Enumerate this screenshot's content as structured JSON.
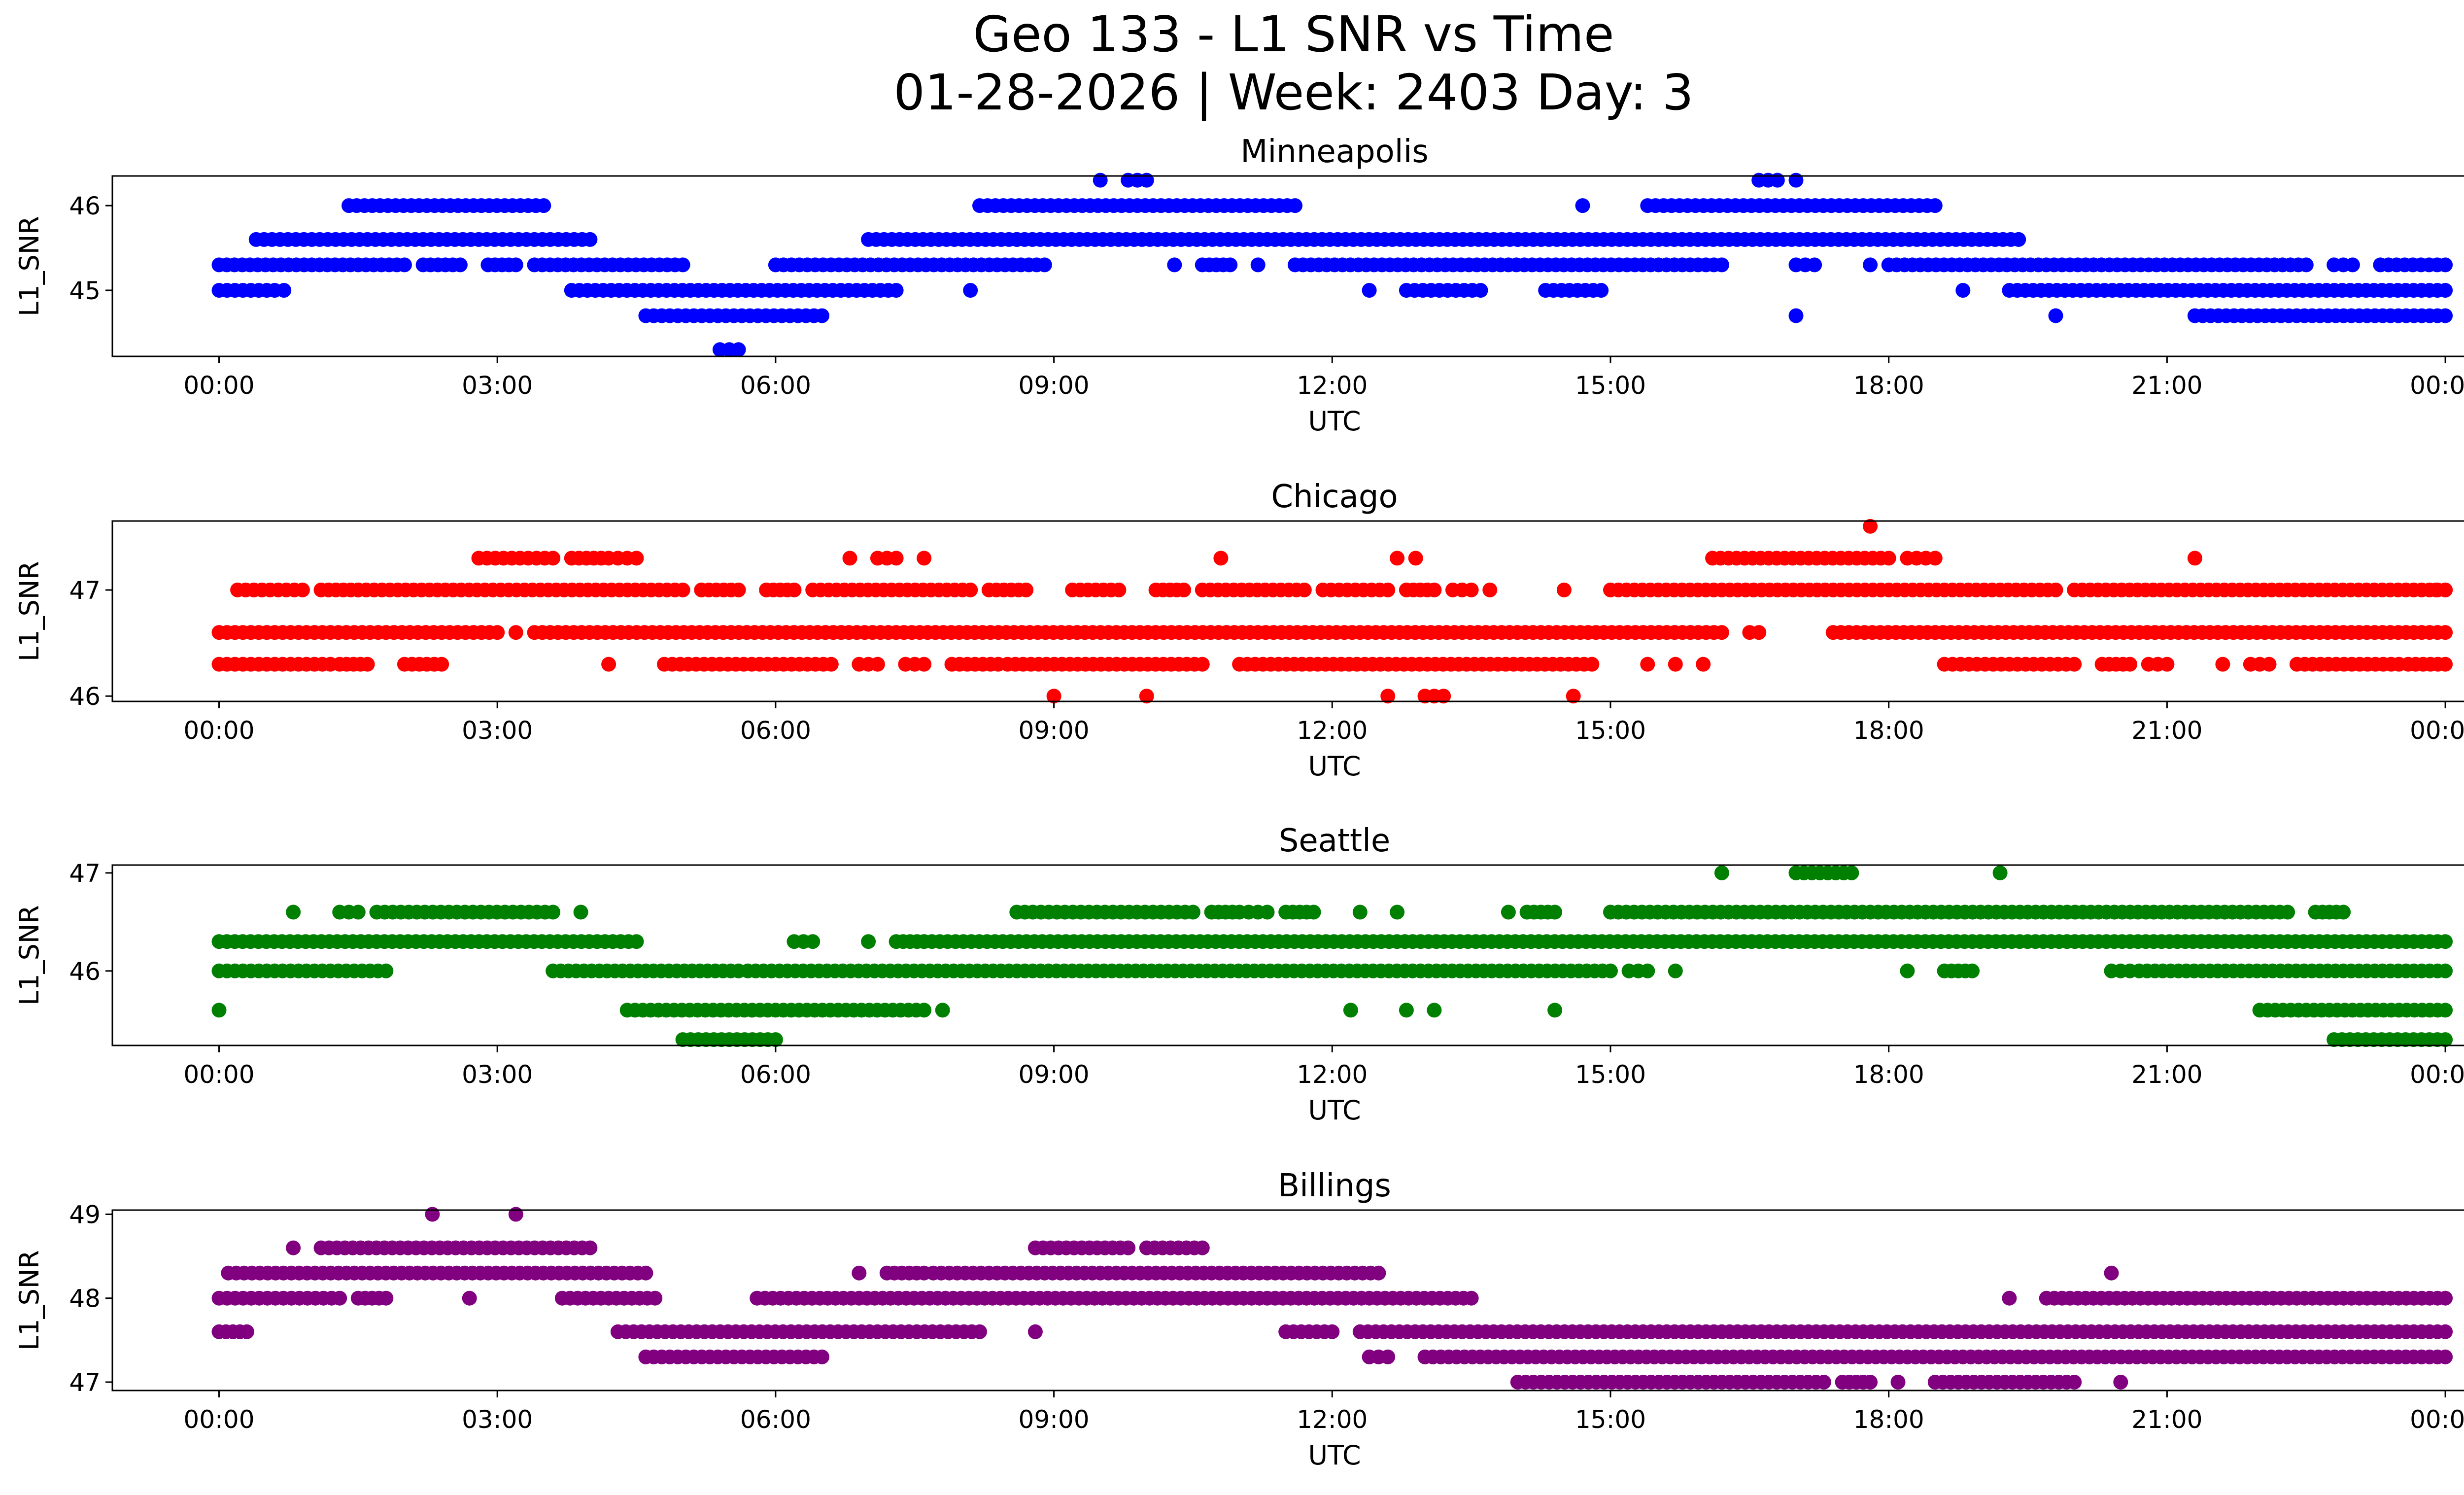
{
  "chart_data": {
    "type": "scatter",
    "title": "Geo 133 - L1 SNR vs Time",
    "subtitle": "01-28-2026 | Week: 2403 Day: 3",
    "x_tick_labels": [
      "00:00",
      "03:00",
      "06:00",
      "09:00",
      "12:00",
      "15:00",
      "18:00",
      "21:00",
      "00:00"
    ],
    "xlim_hours": [
      -1.15,
      25.2
    ],
    "panels": [
      {
        "name": "Minneapolis",
        "color": "#0000ff",
        "xlabel": "UTC",
        "ylabel": "L1_SNR",
        "ylim": [
          44.22,
          46.35
        ],
        "yticks": [
          45,
          46
        ],
        "levels": [
          {
            "y": 46.3,
            "ranges": [
              [
                9.5,
                9.5
              ],
              [
                9.8,
                10.0
              ],
              [
                16.6,
                16.8
              ],
              [
                17.0,
                17.0
              ]
            ]
          },
          {
            "y": 46.0,
            "ranges": [
              [
                1.4,
                3.5
              ],
              [
                8.2,
                11.6
              ],
              [
                14.7,
                14.7
              ],
              [
                15.4,
                18.5
              ]
            ]
          },
          {
            "y": 45.6,
            "ranges": [
              [
                0.4,
                4.0
              ],
              [
                7.0,
                8.6
              ],
              [
                8.6,
                14.0
              ],
              [
                14.0,
                19.4
              ]
            ]
          },
          {
            "y": 45.3,
            "ranges": [
              [
                0.0,
                2.0
              ],
              [
                2.2,
                2.6
              ],
              [
                2.9,
                3.2
              ],
              [
                3.4,
                5.0
              ],
              [
                6.0,
                8.9
              ],
              [
                10.3,
                10.3
              ],
              [
                10.6,
                10.9
              ],
              [
                11.2,
                11.2
              ],
              [
                11.6,
                16.2
              ],
              [
                17.0,
                17.2
              ],
              [
                17.8,
                17.8
              ],
              [
                18.0,
                22.5
              ],
              [
                22.8,
                23.0
              ],
              [
                23.3,
                24.0
              ]
            ]
          },
          {
            "y": 45.0,
            "ranges": [
              [
                0.0,
                0.6
              ],
              [
                0.7,
                0.7
              ],
              [
                3.8,
                7.3
              ],
              [
                8.1,
                8.1
              ],
              [
                12.4,
                12.4
              ],
              [
                12.8,
                13.6
              ],
              [
                14.3,
                14.9
              ],
              [
                18.8,
                18.8
              ],
              [
                19.3,
                24.0
              ]
            ]
          },
          {
            "y": 44.7,
            "ranges": [
              [
                4.6,
                6.5
              ],
              [
                17.0,
                17.0
              ],
              [
                19.8,
                19.8
              ],
              [
                21.3,
                24.0
              ]
            ]
          },
          {
            "y": 44.3,
            "ranges": [
              [
                5.4,
                5.6
              ]
            ]
          }
        ]
      },
      {
        "name": "Chicago",
        "color": "#ff0000",
        "xlabel": "UTC",
        "ylabel": "L1_SNR",
        "ylim": [
          45.95,
          47.65
        ],
        "yticks": [
          46,
          47
        ],
        "levels": [
          {
            "y": 47.6,
            "ranges": [
              [
                17.8,
                17.8
              ]
            ]
          },
          {
            "y": 47.3,
            "ranges": [
              [
                2.8,
                3.6
              ],
              [
                3.8,
                4.2
              ],
              [
                4.3,
                4.5
              ],
              [
                6.8,
                6.8
              ],
              [
                7.1,
                7.3
              ],
              [
                7.6,
                7.6
              ],
              [
                10.8,
                10.8
              ],
              [
                12.7,
                12.7
              ],
              [
                12.9,
                12.9
              ],
              [
                16.1,
                18.0
              ],
              [
                18.2,
                18.2
              ],
              [
                18.3,
                18.5
              ],
              [
                21.3,
                21.3
              ]
            ]
          },
          {
            "y": 47.0,
            "ranges": [
              [
                0.2,
                0.9
              ],
              [
                1.1,
                1.5
              ],
              [
                1.5,
                5.0
              ],
              [
                5.2,
                5.6
              ],
              [
                5.9,
                6.2
              ],
              [
                6.4,
                8.1
              ],
              [
                8.3,
                8.7
              ],
              [
                9.2,
                9.7
              ],
              [
                10.1,
                10.4
              ],
              [
                10.6,
                11.7
              ],
              [
                11.9,
                12.6
              ],
              [
                12.8,
                13.1
              ],
              [
                13.3,
                13.5
              ],
              [
                13.7,
                13.7
              ],
              [
                14.5,
                14.5
              ],
              [
                15.0,
                19.8
              ],
              [
                20.0,
                24.0
              ],
              [
                24.0,
                23.9
              ]
            ]
          },
          {
            "y": 46.6,
            "ranges": [
              [
                0.0,
                3.0
              ],
              [
                3.2,
                3.2
              ],
              [
                3.4,
                16.2
              ],
              [
                16.5,
                16.6
              ],
              [
                17.4,
                24.0
              ]
            ]
          },
          {
            "y": 46.3,
            "ranges": [
              [
                0.0,
                1.2
              ],
              [
                1.3,
                1.6
              ],
              [
                2.0,
                2.4
              ],
              [
                4.2,
                4.2
              ],
              [
                4.8,
                6.6
              ],
              [
                6.9,
                7.1
              ],
              [
                7.4,
                7.6
              ],
              [
                7.9,
                8.4
              ],
              [
                8.5,
                10.6
              ],
              [
                11.0,
                14.8
              ],
              [
                15.4,
                15.4
              ],
              [
                15.7,
                15.7
              ],
              [
                16.0,
                16.0
              ],
              [
                18.6,
                20.0
              ],
              [
                20.3,
                20.6
              ],
              [
                20.8,
                21.0
              ],
              [
                21.6,
                21.6
              ],
              [
                21.9,
                22.1
              ],
              [
                22.4,
                23.5
              ],
              [
                23.6,
                24.0
              ]
            ]
          },
          {
            "y": 46.0,
            "ranges": [
              [
                9.0,
                9.0
              ],
              [
                10.0,
                10.0
              ],
              [
                12.6,
                12.6
              ],
              [
                13.0,
                13.2
              ],
              [
                14.6,
                14.6
              ]
            ]
          }
        ]
      },
      {
        "name": "Seattle",
        "color": "#008000",
        "xlabel": "UTC",
        "ylabel": "L1_SNR",
        "ylim": [
          45.24,
          47.08
        ],
        "yticks": [
          46,
          47
        ],
        "levels": [
          {
            "y": 47.0,
            "ranges": [
              [
                16.2,
                16.2
              ],
              [
                17.0,
                17.6
              ],
              [
                19.2,
                19.2
              ]
            ]
          },
          {
            "y": 46.6,
            "ranges": [
              [
                0.8,
                0.8
              ],
              [
                1.3,
                1.5
              ],
              [
                1.7,
                3.6
              ],
              [
                3.9,
                3.9
              ],
              [
                8.6,
                10.5
              ],
              [
                10.7,
                11.0
              ],
              [
                11.1,
                11.3
              ],
              [
                11.5,
                11.8
              ],
              [
                12.3,
                12.3
              ],
              [
                12.7,
                12.7
              ],
              [
                13.9,
                13.9
              ],
              [
                14.1,
                14.4
              ],
              [
                15.0,
                22.3
              ],
              [
                22.6,
                22.9
              ]
            ]
          },
          {
            "y": 46.3,
            "ranges": [
              [
                0.0,
                4.5
              ],
              [
                6.2,
                6.4
              ],
              [
                7.0,
                7.0
              ],
              [
                7.3,
                7.6
              ],
              [
                7.6,
                24.0
              ]
            ]
          },
          {
            "y": 46.0,
            "ranges": [
              [
                0.0,
                1.8
              ],
              [
                3.6,
                5.6
              ],
              [
                5.7,
                15.0
              ],
              [
                15.2,
                15.4
              ],
              [
                15.7,
                15.7
              ],
              [
                18.2,
                18.2
              ],
              [
                18.6,
                18.9
              ],
              [
                20.4,
                20.6
              ],
              [
                20.7,
                24.0
              ]
            ]
          },
          {
            "y": 45.6,
            "ranges": [
              [
                0.0,
                0.0
              ],
              [
                4.4,
                7.6
              ],
              [
                7.8,
                7.8
              ],
              [
                12.2,
                12.2
              ],
              [
                12.8,
                12.8
              ],
              [
                13.1,
                13.1
              ],
              [
                14.4,
                14.4
              ],
              [
                22.0,
                24.0
              ]
            ]
          },
          {
            "y": 45.3,
            "ranges": [
              [
                5.0,
                6.0
              ],
              [
                22.8,
                24.0
              ]
            ]
          }
        ]
      },
      {
        "name": "Billings",
        "color": "#800080",
        "xlabel": "UTC",
        "ylabel": "L1_SNR",
        "ylim": [
          46.9,
          49.05
        ],
        "yticks": [
          47,
          48,
          49
        ],
        "levels": [
          {
            "y": 49.0,
            "ranges": [
              [
                2.3,
                2.3
              ],
              [
                3.2,
                3.2
              ]
            ]
          },
          {
            "y": 48.6,
            "ranges": [
              [
                0.8,
                0.8
              ],
              [
                1.1,
                4.0
              ],
              [
                8.8,
                9.8
              ],
              [
                10.0,
                10.6
              ]
            ]
          },
          {
            "y": 48.3,
            "ranges": [
              [
                0.1,
                4.6
              ],
              [
                6.9,
                6.9
              ],
              [
                7.2,
                7.6
              ],
              [
                7.7,
                12.5
              ],
              [
                20.4,
                20.4
              ]
            ]
          },
          {
            "y": 48.0,
            "ranges": [
              [
                0.0,
                1.3
              ],
              [
                1.5,
                1.8
              ],
              [
                2.7,
                2.7
              ],
              [
                3.7,
                4.7
              ],
              [
                5.8,
                13.5
              ],
              [
                19.3,
                19.3
              ],
              [
                19.7,
                24.0
              ]
            ]
          },
          {
            "y": 47.6,
            "ranges": [
              [
                0.0,
                0.3
              ],
              [
                4.3,
                8.2
              ],
              [
                8.8,
                8.8
              ],
              [
                11.5,
                12.0
              ],
              [
                12.3,
                24.0
              ]
            ]
          },
          {
            "y": 47.3,
            "ranges": [
              [
                4.6,
                6.5
              ],
              [
                12.4,
                12.6
              ],
              [
                13.0,
                24.0
              ]
            ]
          },
          {
            "y": 47.0,
            "ranges": [
              [
                14.0,
                17.3
              ],
              [
                17.5,
                17.8
              ],
              [
                18.1,
                18.1
              ],
              [
                18.5,
                20.0
              ],
              [
                20.5,
                20.5
              ]
            ]
          }
        ]
      }
    ]
  }
}
